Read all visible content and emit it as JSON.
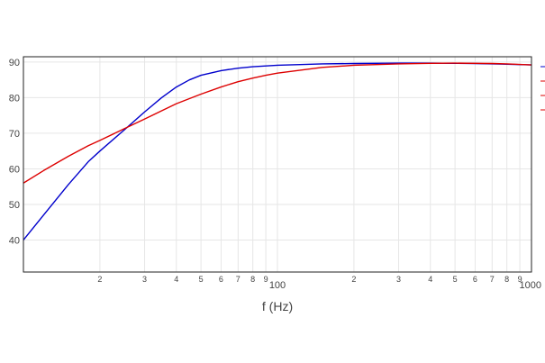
{
  "chart_data": {
    "type": "line",
    "title": "",
    "xlabel": "f (Hz)",
    "ylabel": "",
    "x_scale": "log",
    "xlim": [
      10,
      1000
    ],
    "ylim": [
      31,
      91.5
    ],
    "grid": true,
    "x_ticks": [
      {
        "value": 20,
        "label": "2"
      },
      {
        "value": 30,
        "label": "3"
      },
      {
        "value": 40,
        "label": "4"
      },
      {
        "value": 50,
        "label": "5"
      },
      {
        "value": 60,
        "label": "6"
      },
      {
        "value": 70,
        "label": "7"
      },
      {
        "value": 80,
        "label": "8"
      },
      {
        "value": 90,
        "label": "9"
      },
      {
        "value": 100,
        "label": "100"
      },
      {
        "value": 200,
        "label": "2"
      },
      {
        "value": 300,
        "label": "3"
      },
      {
        "value": 400,
        "label": "4"
      },
      {
        "value": 500,
        "label": "5"
      },
      {
        "value": 600,
        "label": "6"
      },
      {
        "value": 700,
        "label": "7"
      },
      {
        "value": 800,
        "label": "8"
      },
      {
        "value": 900,
        "label": "9"
      },
      {
        "value": 1000,
        "label": "1000"
      }
    ],
    "y_ticks": [
      40,
      50,
      60,
      70,
      80,
      90
    ],
    "series": [
      {
        "color": "#0000cc",
        "points": [
          [
            10,
            40
          ],
          [
            12,
            47
          ],
          [
            15,
            55.5
          ],
          [
            18,
            62
          ],
          [
            20,
            65
          ],
          [
            25,
            71
          ],
          [
            30,
            76
          ],
          [
            35,
            80
          ],
          [
            40,
            83
          ],
          [
            45,
            85
          ],
          [
            50,
            86.3
          ],
          [
            60,
            87.6
          ],
          [
            70,
            88.3
          ],
          [
            80,
            88.7
          ],
          [
            100,
            89.1
          ],
          [
            150,
            89.5
          ],
          [
            200,
            89.6
          ],
          [
            300,
            89.7
          ],
          [
            400,
            89.7
          ],
          [
            500,
            89.65
          ],
          [
            600,
            89.6
          ],
          [
            700,
            89.5
          ],
          [
            800,
            89.4
          ],
          [
            1000,
            89.2
          ]
        ]
      },
      {
        "color": "#dd0000",
        "points": [
          [
            10,
            56
          ],
          [
            12,
            59.5
          ],
          [
            15,
            63.5
          ],
          [
            18,
            66.5
          ],
          [
            20,
            68
          ],
          [
            25,
            71.3
          ],
          [
            30,
            74
          ],
          [
            35,
            76.3
          ],
          [
            40,
            78.3
          ],
          [
            50,
            81
          ],
          [
            60,
            83
          ],
          [
            70,
            84.5
          ],
          [
            80,
            85.5
          ],
          [
            90,
            86.3
          ],
          [
            100,
            86.9
          ],
          [
            150,
            88.5
          ],
          [
            200,
            89.1
          ],
          [
            300,
            89.5
          ],
          [
            400,
            89.65
          ],
          [
            500,
            89.7
          ],
          [
            600,
            89.65
          ],
          [
            700,
            89.6
          ],
          [
            800,
            89.5
          ],
          [
            1000,
            89.2
          ]
        ]
      }
    ],
    "legend_markers": [
      {
        "color": "#0000cc"
      },
      {
        "color": "#dd0000"
      },
      {
        "color": "#dd0000"
      },
      {
        "color": "#dd0000"
      }
    ]
  }
}
